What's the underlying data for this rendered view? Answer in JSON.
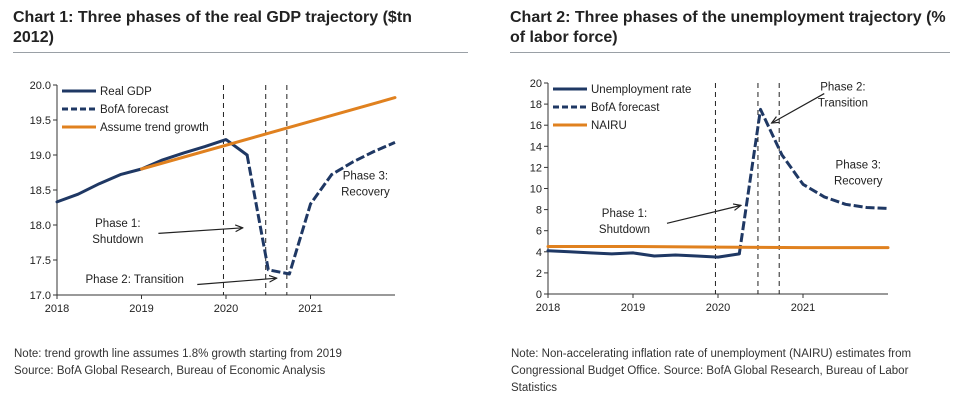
{
  "chart_data": [
    {
      "type": "line",
      "title": "Chart 1: Three phases of the real GDP trajectory ($tn 2012)",
      "note_lines": [
        "Note: trend growth line assumes 1.8% growth starting from 2019",
        "Source: BofA Global Research, Bureau of Economic Analysis"
      ],
      "xlim": [
        2018,
        2022
      ],
      "ylim": [
        17.0,
        20.0
      ],
      "x_ticks": [
        "2018",
        "2019",
        "2020",
        "2021"
      ],
      "y_ticks": [
        "17.0",
        "17.5",
        "18.0",
        "18.5",
        "19.0",
        "19.5",
        "20.0"
      ],
      "legend": [
        "Real GDP",
        "BofA forecast",
        "Assume trend growth"
      ],
      "colors": {
        "gdp": "#1f3864",
        "trend": "#e0811f",
        "vline": "#222222"
      },
      "series": [
        {
          "name": "Real GDP",
          "style": "solid",
          "x": [
            2018.0,
            2018.25,
            2018.5,
            2018.75,
            2019.0,
            2019.25,
            2019.5,
            2019.75,
            2020.0,
            2020.25
          ],
          "y": [
            18.33,
            18.44,
            18.59,
            18.72,
            18.8,
            18.93,
            19.03,
            19.12,
            19.22,
            19.0
          ]
        },
        {
          "name": "BofA forecast",
          "style": "dashed",
          "x": [
            2020.25,
            2020.5,
            2020.75,
            2021.0,
            2021.25,
            2021.5,
            2021.75,
            2022.0
          ],
          "y": [
            19.0,
            17.36,
            17.3,
            18.3,
            18.72,
            18.9,
            19.05,
            19.18
          ]
        },
        {
          "name": "Assume trend growth",
          "style": "solid",
          "x": [
            2019.0,
            2022.0
          ],
          "y": [
            18.8,
            19.82
          ]
        }
      ],
      "vlines": [
        2019.97,
        2020.47,
        2020.72
      ],
      "annotations": [
        {
          "lines": [
            "Phase 1:",
            "Shutdown"
          ],
          "tx": 2018.72,
          "ty": 17.97,
          "ax": 2019.2,
          "ay": 17.88,
          "hx": 2020.2,
          "hy": 17.96
        },
        {
          "lines": [
            "Phase 2: Transition"
          ],
          "tx": 2018.92,
          "ty": 17.17,
          "ax": 2019.66,
          "ay": 17.15,
          "hx": 2020.6,
          "hy": 17.24
        },
        {
          "lines": [
            "Phase 3:",
            "Recovery"
          ],
          "tx": 2021.65,
          "ty": 18.65,
          "ax": null,
          "ay": null,
          "hx": null,
          "hy": null
        }
      ]
    },
    {
      "type": "line",
      "title": "Chart 2: Three phases of the unemployment trajectory (% of labor force)",
      "note_lines": [
        "Note: Non-accelerating inflation rate of unemployment (NAIRU) estimates from",
        "Congressional Budget Office. Source: BofA Global Research, Bureau of Labor",
        "Statistics"
      ],
      "xlim": [
        2018,
        2022
      ],
      "ylim": [
        0,
        20
      ],
      "x_ticks": [
        "2018",
        "2019",
        "2020",
        "2021"
      ],
      "y_ticks": [
        "0",
        "2",
        "4",
        "6",
        "8",
        "10",
        "12",
        "14",
        "16",
        "18",
        "20"
      ],
      "legend": [
        "Unemployment rate",
        "BofA forecast",
        "NAIRU"
      ],
      "colors": {
        "rate": "#1f3864",
        "nairu": "#e0811f",
        "vline": "#222222"
      },
      "series": [
        {
          "name": "Unemployment rate",
          "style": "solid",
          "x": [
            2018.0,
            2018.25,
            2018.5,
            2018.75,
            2019.0,
            2019.25,
            2019.5,
            2019.75,
            2020.0,
            2020.25
          ],
          "y": [
            4.1,
            4.0,
            3.9,
            3.8,
            3.9,
            3.6,
            3.7,
            3.6,
            3.5,
            3.8
          ]
        },
        {
          "name": "BofA forecast",
          "style": "dashed",
          "x": [
            2020.25,
            2020.5,
            2020.75,
            2021.0,
            2021.25,
            2021.5,
            2021.75,
            2022.0
          ],
          "y": [
            3.8,
            17.5,
            13.2,
            10.4,
            9.2,
            8.5,
            8.2,
            8.1
          ]
        },
        {
          "name": "NAIRU",
          "style": "solid",
          "x": [
            2018.0,
            2019.0,
            2020.0,
            2021.0,
            2022.0
          ],
          "y": [
            4.5,
            4.5,
            4.45,
            4.4,
            4.4
          ]
        }
      ],
      "vlines": [
        2019.97,
        2020.47,
        2020.72
      ],
      "annotations": [
        {
          "lines": [
            "Phase 1:",
            "Shutdown"
          ],
          "tx": 2018.9,
          "ty": 7.3,
          "ax": 2019.4,
          "ay": 6.7,
          "hx": 2020.27,
          "hy": 8.4
        },
        {
          "lines": [
            "Phase 2:",
            "Transition"
          ],
          "tx": 2021.47,
          "ty": 19.3,
          "ax": 2021.25,
          "ay": 19.0,
          "hx": 2020.63,
          "hy": 16.2
        },
        {
          "lines": [
            "Phase 3:",
            "Recovery"
          ],
          "tx": 2021.65,
          "ty": 11.9,
          "ax": null,
          "ay": null,
          "hx": null,
          "hy": null
        }
      ]
    }
  ]
}
